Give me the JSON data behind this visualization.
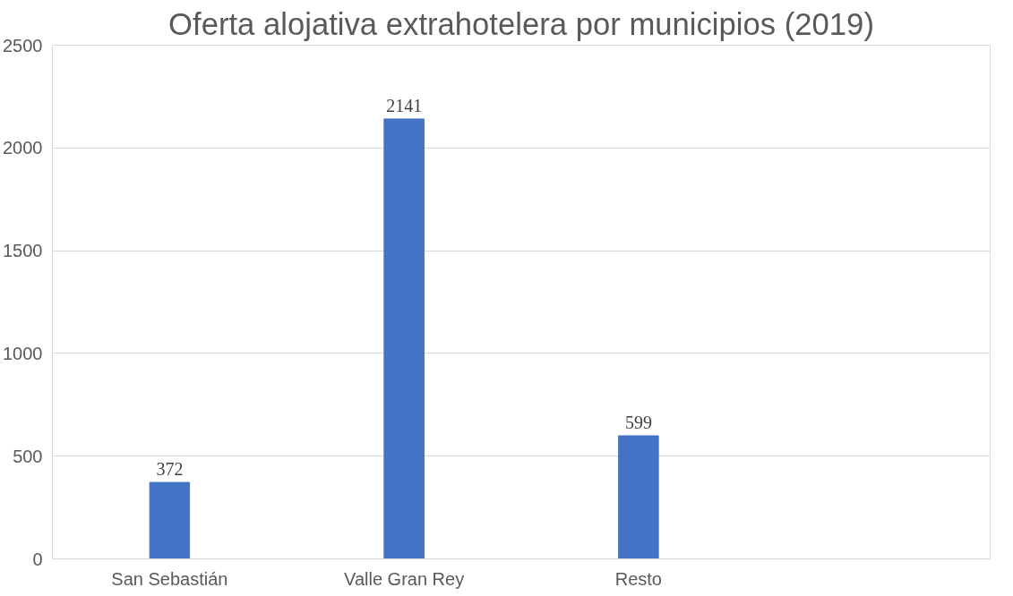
{
  "chart_data": {
    "type": "bar",
    "title": "Oferta alojativa extrahotelera por municipios (2019)",
    "categories": [
      "San Sebastián",
      "Valle Gran Rey",
      "Resto",
      null
    ],
    "values": [
      372,
      2141,
      599,
      null
    ],
    "color": "#4472c4",
    "ylim": [
      0,
      2500
    ],
    "yticks": [
      0,
      500,
      1000,
      1500,
      2000,
      2500
    ],
    "grid": "y",
    "data_labels": true
  }
}
